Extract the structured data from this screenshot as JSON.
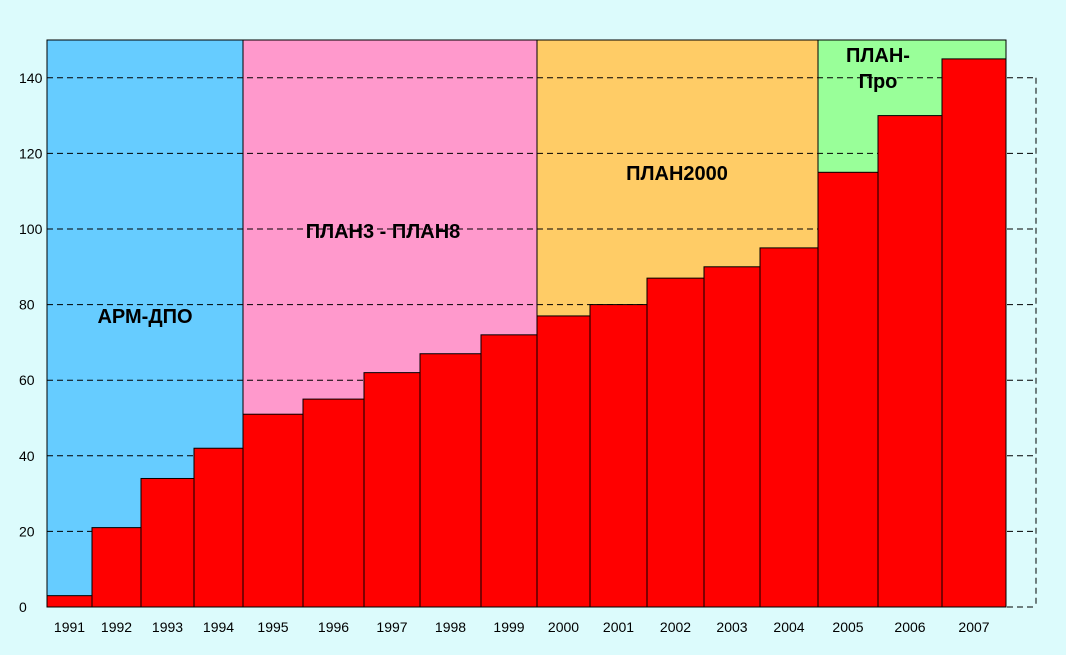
{
  "colors": {
    "background": "#dcfbfc",
    "bar": "#ff0000",
    "bar_stroke": "#000000",
    "gridline": "#000000"
  },
  "chart_data": {
    "type": "bar",
    "title": "",
    "xlabel": "",
    "ylabel": "",
    "ylim": [
      0,
      150
    ],
    "yticks": [
      0,
      20,
      40,
      60,
      80,
      100,
      120,
      140
    ],
    "grid": "horizontal dashed",
    "categories": [
      "1991",
      "1992",
      "1993",
      "1994",
      "1995",
      "1996",
      "1997",
      "1998",
      "1999",
      "2000",
      "2001",
      "2002",
      "2003",
      "2004",
      "2005",
      "2006",
      "2007"
    ],
    "values": [
      3,
      21,
      34,
      42,
      51,
      55,
      62,
      67,
      72,
      77,
      80,
      87,
      90,
      95,
      115,
      130,
      145
    ],
    "eras": [
      {
        "label": "АРМ-ДПО",
        "from": "1991",
        "to": "1994",
        "color": "#66ccff"
      },
      {
        "label": "ПЛАН3 - ПЛАН8",
        "from": "1995",
        "to": "1999",
        "color": "#ff99cc"
      },
      {
        "label": "ПЛАН2000",
        "from": "2000",
        "to": "2004",
        "color": "#ffcc66"
      },
      {
        "label_lines": [
          "ПЛАН-",
          "Про"
        ],
        "from": "2005",
        "to": "2007",
        "color": "#99ff99"
      }
    ]
  }
}
